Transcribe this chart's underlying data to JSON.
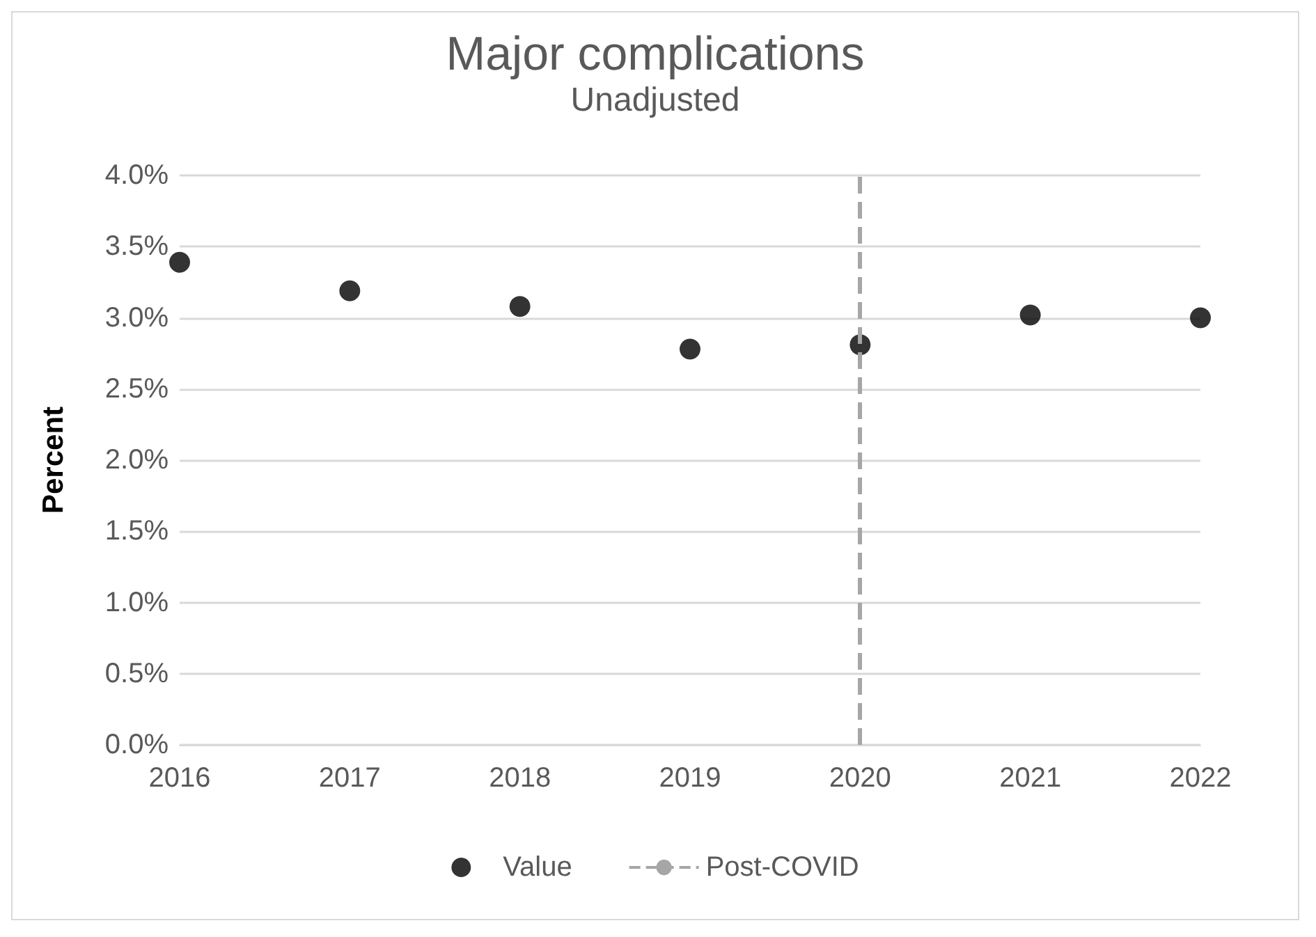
{
  "chart_data": {
    "type": "scatter",
    "title": "Major complications",
    "subtitle": "Unadjusted",
    "ylabel": "Percent",
    "x": [
      2016,
      2017,
      2018,
      2019,
      2020,
      2021,
      2022
    ],
    "series": [
      {
        "name": "Value",
        "color": "#000000",
        "values": [
          3.39,
          3.19,
          3.08,
          2.78,
          2.81,
          3.02,
          3.0
        ]
      }
    ],
    "xlim": [
      2016,
      2022
    ],
    "xticks": [
      2016,
      2017,
      2018,
      2019,
      2020,
      2021,
      2022
    ],
    "ylim": [
      0,
      4
    ],
    "yticks": [
      {
        "value": 0,
        "label": "0.0%"
      },
      {
        "value": 0.5,
        "label": "0.5%"
      },
      {
        "value": 1,
        "label": "1.0%"
      },
      {
        "value": 1.5,
        "label": "1.5%"
      },
      {
        "value": 2,
        "label": "2.0%"
      },
      {
        "value": 2.5,
        "label": "2.5%"
      },
      {
        "value": 3,
        "label": "3.0%"
      },
      {
        "value": 3.5,
        "label": "3.5%"
      },
      {
        "value": 4,
        "label": "4.0%"
      }
    ],
    "ref_lines": [
      {
        "axis": "x",
        "value": 2020,
        "label": "Post-COVID",
        "color": "#a6a6a6",
        "line_style": "dashed"
      }
    ],
    "grid": "y",
    "legend": "bottom",
    "marker": "circle"
  }
}
